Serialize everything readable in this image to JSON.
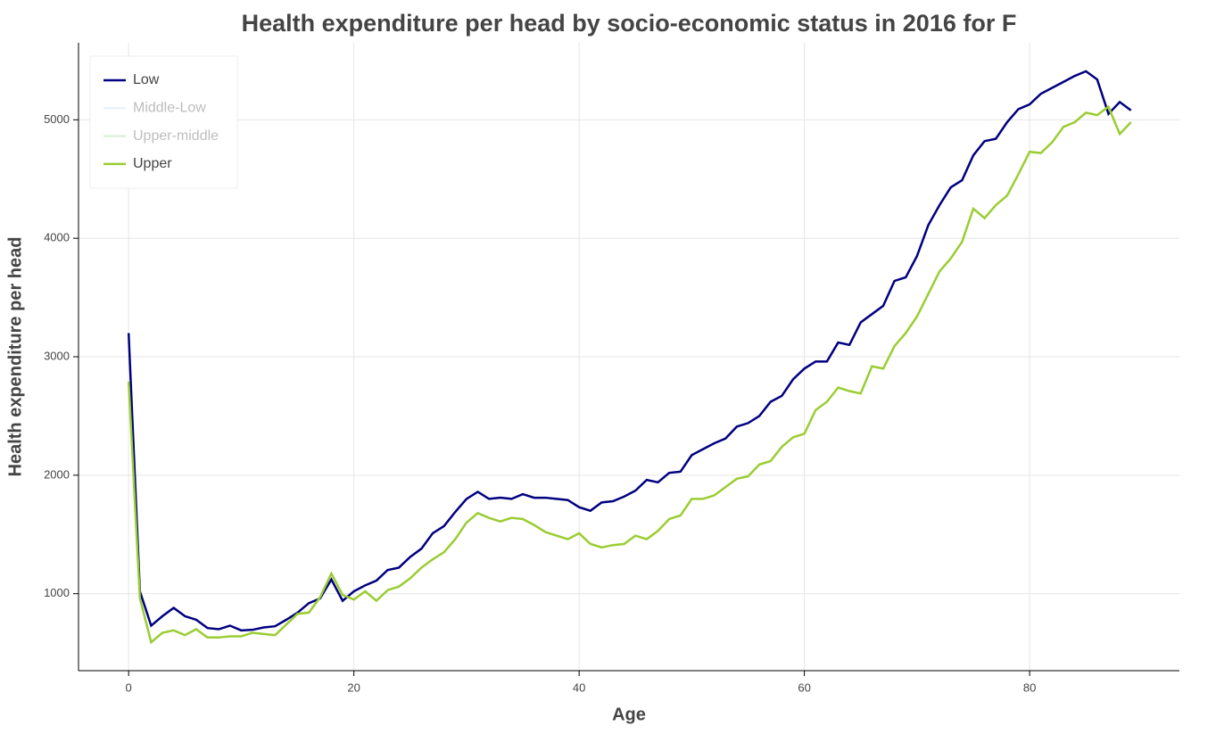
{
  "chart_data": {
    "type": "line",
    "title": "Health expenditure per head by socio-economic status in 2016 for F",
    "x_label": "Age",
    "y_label": "Health expenditure per head",
    "x": [
      0,
      1,
      2,
      3,
      4,
      5,
      6,
      7,
      8,
      9,
      10,
      11,
      12,
      13,
      14,
      15,
      16,
      17,
      18,
      19,
      20,
      21,
      22,
      23,
      24,
      25,
      26,
      27,
      28,
      29,
      30,
      31,
      32,
      33,
      34,
      35,
      36,
      37,
      38,
      39,
      40,
      41,
      42,
      43,
      44,
      45,
      46,
      47,
      48,
      49,
      50,
      51,
      52,
      53,
      54,
      55,
      56,
      57,
      58,
      59,
      60,
      61,
      62,
      63,
      64,
      65,
      66,
      67,
      68,
      69,
      70,
      71,
      72,
      73,
      74,
      75,
      76,
      77,
      78,
      79,
      80,
      81,
      82,
      83,
      84,
      85,
      86,
      87,
      88,
      89
    ],
    "series": [
      {
        "name": "Low",
        "color": "#000080",
        "visible": true,
        "values": [
          3200,
          1020,
          730,
          810,
          880,
          810,
          780,
          710,
          700,
          730,
          690,
          695,
          715,
          725,
          780,
          840,
          920,
          960,
          1120,
          940,
          1020,
          1070,
          1110,
          1200,
          1220,
          1310,
          1380,
          1510,
          1570,
          1690,
          1800,
          1860,
          1800,
          1810,
          1800,
          1840,
          1810,
          1810,
          1800,
          1790,
          1730,
          1700,
          1770,
          1780,
          1820,
          1870,
          1960,
          1940,
          2020,
          2030,
          2170,
          2220,
          2270,
          2310,
          2410,
          2440,
          2500,
          2620,
          2670,
          2810,
          2900,
          2960,
          2960,
          3120,
          3100,
          3290,
          3360,
          3430,
          3640,
          3670,
          3850,
          4110,
          4280,
          4430,
          4490,
          4700,
          4820,
          4840,
          4980,
          5090,
          5130,
          5220,
          5270,
          5320,
          5370,
          5410,
          5340,
          5050,
          5150,
          5080
        ]
      },
      {
        "name": "Middle-Low",
        "color": "#c6dbef",
        "visible": false
      },
      {
        "name": "Upper-middle",
        "color": "#a1d99b",
        "visible": false
      },
      {
        "name": "Upper",
        "color": "#9acd32",
        "visible": true,
        "values": [
          2790,
          960,
          590,
          670,
          690,
          650,
          700,
          630,
          630,
          640,
          640,
          670,
          660,
          650,
          740,
          830,
          840,
          970,
          1170,
          990,
          950,
          1020,
          940,
          1030,
          1060,
          1130,
          1220,
          1290,
          1350,
          1460,
          1600,
          1680,
          1640,
          1610,
          1640,
          1630,
          1580,
          1520,
          1490,
          1460,
          1510,
          1420,
          1390,
          1410,
          1420,
          1490,
          1460,
          1530,
          1630,
          1660,
          1800,
          1800,
          1830,
          1900,
          1970,
          1990,
          2090,
          2120,
          2240,
          2320,
          2350,
          2550,
          2620,
          2740,
          2710,
          2690,
          2920,
          2900,
          3090,
          3200,
          3340,
          3530,
          3720,
          3830,
          3970,
          4250,
          4170,
          4280,
          4360,
          4540,
          4730,
          4720,
          4810,
          4940,
          4980,
          5060,
          5040,
          5110,
          4880,
          4980
        ]
      }
    ],
    "xlim": [
      -4.45,
      93.3
    ],
    "ylim": [
      350,
      5650
    ],
    "xticks": [
      0,
      20,
      40,
      60,
      80
    ],
    "yticks": [
      1000,
      2000,
      3000,
      4000,
      5000
    ],
    "grid": true,
    "legend": "top-left"
  }
}
